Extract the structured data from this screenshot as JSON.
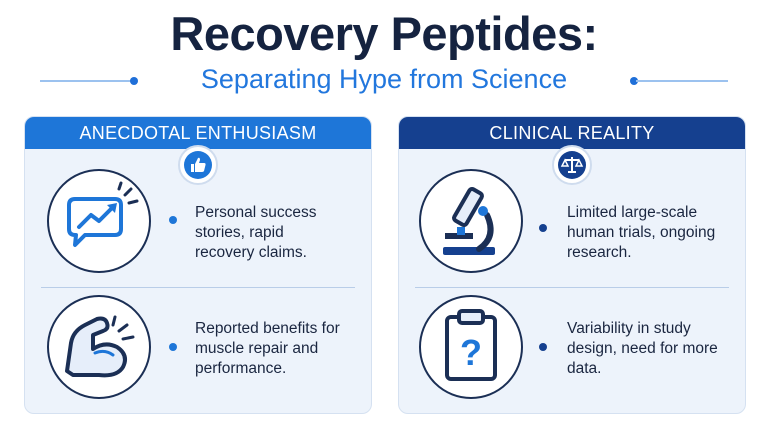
{
  "title": "Recovery Peptides:",
  "subtitle": "Separating Hype from Science",
  "panels": {
    "left": {
      "header": "ANECDOTAL ENTHUSIASM",
      "badge_icon": "thumbs-up-icon",
      "rows": [
        {
          "icon": "chat-trend-up-icon",
          "text": "Personal success stories, rapid recovery claims."
        },
        {
          "icon": "flexed-arm-icon",
          "text": "Reported benefits for muscle repair and performance."
        }
      ]
    },
    "right": {
      "header": "CLINICAL REALITY",
      "badge_icon": "balance-scale-icon",
      "rows": [
        {
          "icon": "microscope-icon",
          "text": "Limited large-scale human trials, ongoing research."
        },
        {
          "icon": "clipboard-question-icon",
          "text": "Variability in study design, need for more data."
        }
      ]
    }
  },
  "colors": {
    "title": "#152340",
    "subtitle": "#2277dd",
    "left_accent": "#1e76d8",
    "right_accent": "#15408f",
    "panel_bg": "#edf3fb"
  }
}
